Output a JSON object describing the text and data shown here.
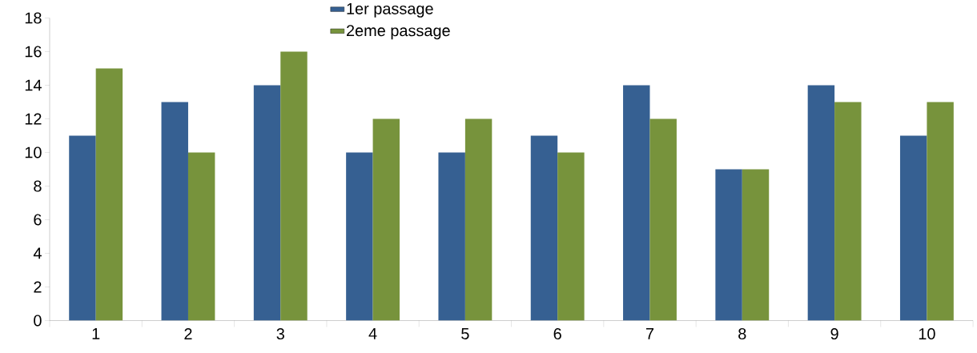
{
  "chart_data": {
    "type": "bar",
    "categories": [
      "1",
      "2",
      "3",
      "4",
      "5",
      "6",
      "7",
      "8",
      "9",
      "10"
    ],
    "series": [
      {
        "name": "1er passage",
        "color": "#366092",
        "values": [
          11,
          13,
          14,
          10,
          10,
          11,
          14,
          9,
          14,
          11
        ]
      },
      {
        "name": "2eme passage",
        "color": "#77933c",
        "values": [
          15,
          10,
          16,
          12,
          12,
          10,
          12,
          9,
          13,
          13
        ]
      }
    ],
    "ylim": [
      0,
      18
    ],
    "yticks": [
      0,
      2,
      4,
      6,
      8,
      10,
      12,
      14,
      16,
      18
    ],
    "grid": false,
    "legend": "top"
  }
}
